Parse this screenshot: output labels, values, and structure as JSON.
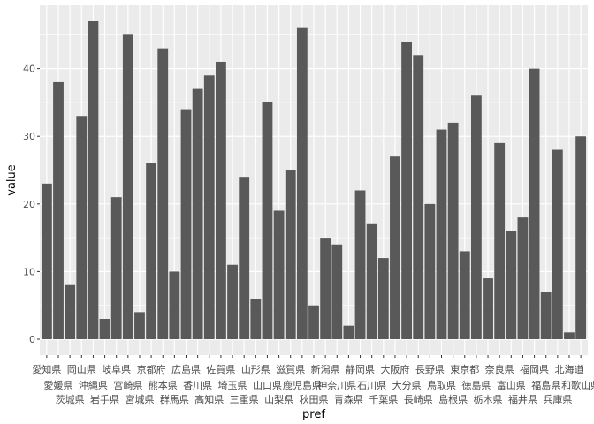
{
  "chart_data": {
    "type": "bar",
    "xlabel": "pref",
    "ylabel": "value",
    "ylim": [
      -2.35,
      49.35
    ],
    "yticks": [
      0,
      10,
      20,
      30,
      40
    ],
    "grid": true,
    "categories": [
      "愛知県",
      "愛媛県",
      "茨城県",
      "岡山県",
      "沖縄県",
      "岩手県",
      "岐阜県",
      "宮崎県",
      "宮城県",
      "京都府",
      "熊本県",
      "群馬県",
      "広島県",
      "香川県",
      "高知県",
      "佐賀県",
      "埼玉県",
      "三重県",
      "山形県",
      "山口県",
      "山梨県",
      "滋賀県",
      "鹿児島県",
      "秋田県",
      "新潟県",
      "神奈川県",
      "青森県",
      "静岡県",
      "石川県",
      "千葉県",
      "大阪府",
      "大分県",
      "長崎県",
      "長野県",
      "鳥取県",
      "島根県",
      "東京都",
      "徳島県",
      "栃木県",
      "奈良県",
      "富山県",
      "福井県",
      "福岡県",
      "福島県",
      "兵庫県",
      "北海道",
      "和歌山県"
    ],
    "values": [
      23,
      38,
      8,
      33,
      47,
      3,
      21,
      45,
      4,
      26,
      43,
      10,
      34,
      37,
      39,
      41,
      11,
      24,
      6,
      35,
      19,
      25,
      46,
      5,
      15,
      14,
      2,
      22,
      17,
      12,
      27,
      44,
      42,
      20,
      31,
      32,
      13,
      36,
      9,
      29,
      16,
      18,
      40,
      7,
      28,
      1,
      30
    ]
  }
}
